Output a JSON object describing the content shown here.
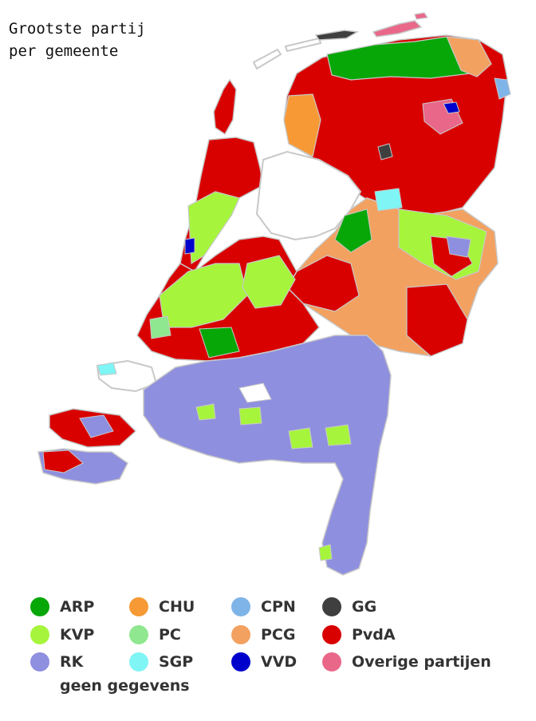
{
  "title_line1": "Grootste partij",
  "title_line2": "per gemeente",
  "legend": [
    {
      "label": "ARP",
      "color": "#08a708"
    },
    {
      "label": "KVP",
      "color": "#a6f53c"
    },
    {
      "label": "RK",
      "color": "#8f8fdf"
    },
    {
      "label": "CHU",
      "color": "#f79a35"
    },
    {
      "label": "PC",
      "color": "#8fe88f"
    },
    {
      "label": "SGP",
      "color": "#7ff5f5"
    },
    {
      "label": "CPN",
      "color": "#7fb4e8"
    },
    {
      "label": "PCG",
      "color": "#f2a160"
    },
    {
      "label": "VVD",
      "color": "#0000cc"
    },
    {
      "label": "GG",
      "color": "#3f3f3f"
    },
    {
      "label": "PvdA",
      "color": "#d90000"
    },
    {
      "label": "Overige partijen",
      "color": "#e9688a"
    }
  ],
  "no_data_label": "geen gegevens"
}
